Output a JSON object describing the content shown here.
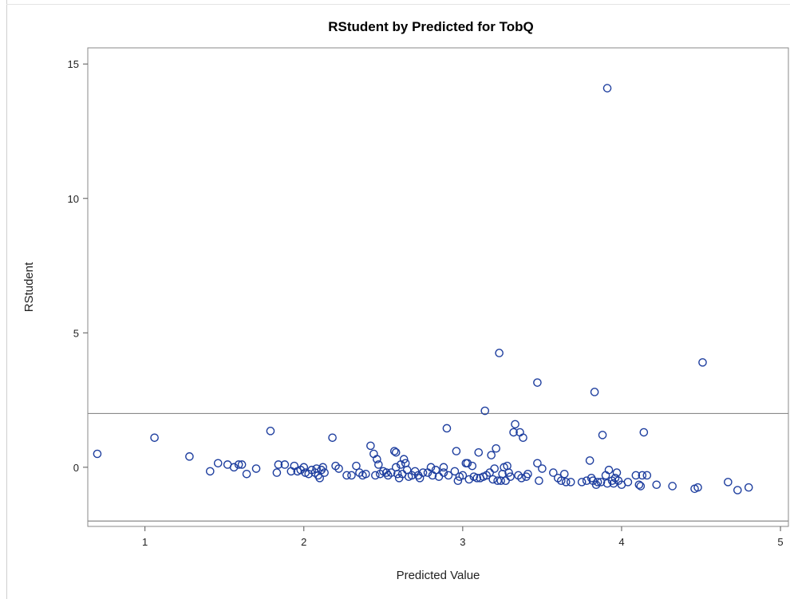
{
  "chart_data": {
    "type": "scatter",
    "title": "RStudent by Predicted for TobQ",
    "xlabel": "Predicted Value",
    "ylabel": "RStudent",
    "xlim": [
      0.64,
      5.05
    ],
    "ylim": [
      -2.2,
      15.6
    ],
    "xticks": [
      "1",
      "2",
      "3",
      "4",
      "5"
    ],
    "yticks": [
      "0",
      "5",
      "10",
      "15"
    ],
    "xtick_values": [
      1,
      2,
      3,
      4,
      5
    ],
    "ytick_values": [
      0,
      5,
      10,
      15
    ],
    "reference_lines_y": [
      2,
      -2
    ],
    "grid": false,
    "marker_color": "#1f3f9f",
    "reference_line_color": "#8a8a8a",
    "points": [
      [
        0.7,
        0.5
      ],
      [
        1.06,
        1.1
      ],
      [
        1.28,
        0.4
      ],
      [
        1.41,
        -0.15
      ],
      [
        1.46,
        0.15
      ],
      [
        1.52,
        0.1
      ],
      [
        1.56,
        0.0
      ],
      [
        1.59,
        0.1
      ],
      [
        1.61,
        0.1
      ],
      [
        1.64,
        -0.25
      ],
      [
        1.7,
        -0.05
      ],
      [
        1.79,
        1.35
      ],
      [
        1.83,
        -0.2
      ],
      [
        1.84,
        0.1
      ],
      [
        1.88,
        0.1
      ],
      [
        1.92,
        -0.15
      ],
      [
        1.94,
        0.05
      ],
      [
        1.96,
        -0.15
      ],
      [
        1.98,
        -0.1
      ],
      [
        2.0,
        0.0
      ],
      [
        2.01,
        -0.2
      ],
      [
        2.03,
        -0.25
      ],
      [
        2.05,
        -0.1
      ],
      [
        2.07,
        -0.2
      ],
      [
        2.08,
        -0.05
      ],
      [
        2.09,
        -0.3
      ],
      [
        2.1,
        -0.4
      ],
      [
        2.11,
        -0.1
      ],
      [
        2.12,
        0.0
      ],
      [
        2.13,
        -0.2
      ],
      [
        2.18,
        1.1
      ],
      [
        2.2,
        0.05
      ],
      [
        2.22,
        -0.05
      ],
      [
        2.27,
        -0.3
      ],
      [
        2.3,
        -0.3
      ],
      [
        2.33,
        0.05
      ],
      [
        2.35,
        -0.2
      ],
      [
        2.37,
        -0.3
      ],
      [
        2.39,
        -0.25
      ],
      [
        2.42,
        0.8
      ],
      [
        2.44,
        0.5
      ],
      [
        2.45,
        -0.3
      ],
      [
        2.46,
        0.3
      ],
      [
        2.47,
        0.1
      ],
      [
        2.48,
        -0.25
      ],
      [
        2.5,
        -0.15
      ],
      [
        2.52,
        -0.2
      ],
      [
        2.53,
        -0.3
      ],
      [
        2.55,
        -0.2
      ],
      [
        2.57,
        0.6
      ],
      [
        2.58,
        0.55
      ],
      [
        2.58,
        0.0
      ],
      [
        2.59,
        -0.25
      ],
      [
        2.6,
        -0.4
      ],
      [
        2.61,
        0.1
      ],
      [
        2.62,
        -0.25
      ],
      [
        2.63,
        0.3
      ],
      [
        2.64,
        0.15
      ],
      [
        2.65,
        -0.1
      ],
      [
        2.66,
        -0.35
      ],
      [
        2.68,
        -0.3
      ],
      [
        2.7,
        -0.15
      ],
      [
        2.72,
        -0.3
      ],
      [
        2.73,
        -0.4
      ],
      [
        2.75,
        -0.2
      ],
      [
        2.78,
        -0.2
      ],
      [
        2.8,
        0.0
      ],
      [
        2.81,
        -0.3
      ],
      [
        2.83,
        -0.1
      ],
      [
        2.85,
        -0.35
      ],
      [
        2.88,
        -0.2
      ],
      [
        2.88,
        0.0
      ],
      [
        2.9,
        1.45
      ],
      [
        2.91,
        -0.3
      ],
      [
        2.95,
        -0.15
      ],
      [
        2.96,
        0.6
      ],
      [
        2.97,
        -0.5
      ],
      [
        2.98,
        -0.35
      ],
      [
        3.0,
        -0.3
      ],
      [
        3.02,
        0.15
      ],
      [
        3.03,
        0.15
      ],
      [
        3.04,
        -0.45
      ],
      [
        3.06,
        0.05
      ],
      [
        3.07,
        -0.35
      ],
      [
        3.09,
        -0.4
      ],
      [
        3.1,
        0.55
      ],
      [
        3.11,
        -0.4
      ],
      [
        3.13,
        -0.35
      ],
      [
        3.14,
        2.1
      ],
      [
        3.15,
        -0.3
      ],
      [
        3.17,
        -0.2
      ],
      [
        3.18,
        0.45
      ],
      [
        3.19,
        -0.45
      ],
      [
        3.2,
        -0.05
      ],
      [
        3.21,
        0.7
      ],
      [
        3.22,
        -0.5
      ],
      [
        3.23,
        4.25
      ],
      [
        3.24,
        -0.5
      ],
      [
        3.25,
        -0.25
      ],
      [
        3.26,
        0.0
      ],
      [
        3.27,
        -0.5
      ],
      [
        3.28,
        0.05
      ],
      [
        3.29,
        -0.2
      ],
      [
        3.3,
        -0.35
      ],
      [
        3.32,
        1.3
      ],
      [
        3.33,
        1.6
      ],
      [
        3.35,
        -0.3
      ],
      [
        3.36,
        1.3
      ],
      [
        3.37,
        -0.4
      ],
      [
        3.38,
        1.1
      ],
      [
        3.4,
        -0.35
      ],
      [
        3.41,
        -0.25
      ],
      [
        3.47,
        3.15
      ],
      [
        3.47,
        0.15
      ],
      [
        3.48,
        -0.5
      ],
      [
        3.5,
        -0.05
      ],
      [
        3.57,
        -0.2
      ],
      [
        3.6,
        -0.4
      ],
      [
        3.62,
        -0.5
      ],
      [
        3.64,
        -0.25
      ],
      [
        3.65,
        -0.55
      ],
      [
        3.68,
        -0.55
      ],
      [
        3.75,
        -0.55
      ],
      [
        3.78,
        -0.5
      ],
      [
        3.8,
        0.25
      ],
      [
        3.81,
        -0.4
      ],
      [
        3.82,
        -0.5
      ],
      [
        3.83,
        2.8
      ],
      [
        3.84,
        -0.65
      ],
      [
        3.85,
        -0.55
      ],
      [
        3.87,
        -0.55
      ],
      [
        3.88,
        1.2
      ],
      [
        3.9,
        -0.3
      ],
      [
        3.91,
        -0.6
      ],
      [
        3.91,
        14.1
      ],
      [
        3.92,
        -0.1
      ],
      [
        3.94,
        -0.5
      ],
      [
        3.95,
        -0.6
      ],
      [
        3.96,
        -0.4
      ],
      [
        3.97,
        -0.2
      ],
      [
        3.98,
        -0.5
      ],
      [
        4.0,
        -0.65
      ],
      [
        4.04,
        -0.55
      ],
      [
        4.09,
        -0.3
      ],
      [
        4.11,
        -0.65
      ],
      [
        4.12,
        -0.7
      ],
      [
        4.13,
        -0.3
      ],
      [
        4.14,
        1.3
      ],
      [
        4.16,
        -0.3
      ],
      [
        4.22,
        -0.65
      ],
      [
        4.32,
        -0.7
      ],
      [
        4.46,
        -0.8
      ],
      [
        4.48,
        -0.75
      ],
      [
        4.51,
        3.9
      ],
      [
        4.67,
        -0.55
      ],
      [
        4.73,
        -0.85
      ],
      [
        4.8,
        -0.75
      ]
    ]
  }
}
